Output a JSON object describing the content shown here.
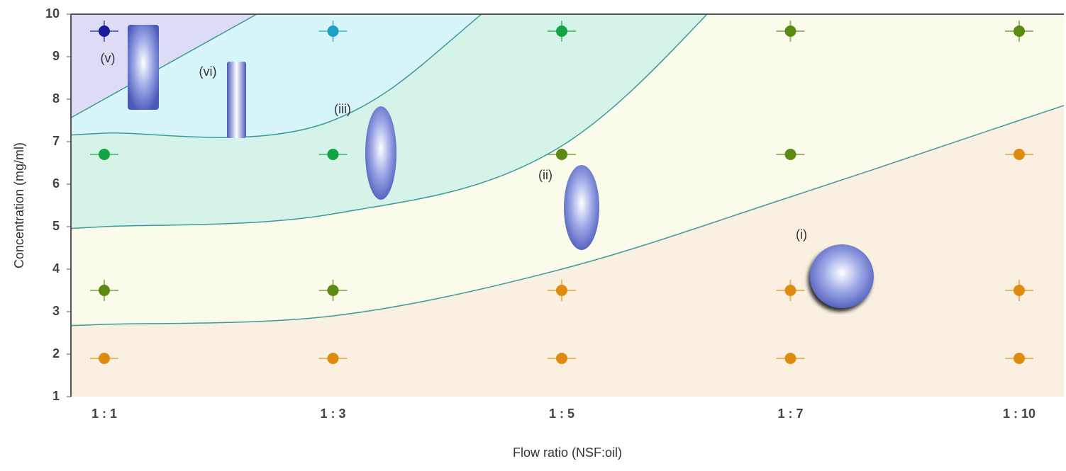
{
  "chart_data": {
    "type": "scatter",
    "x_label": "Flow ratio (NSF:oil)",
    "y_label": "Concentration (mg/ml)",
    "categories": [
      "1 : 1",
      "1 : 3",
      "1 : 5",
      "1 : 7",
      "1 : 10"
    ],
    "ylim": [
      1,
      10
    ],
    "yticks": [
      1,
      2,
      3,
      4,
      5,
      6,
      7,
      8,
      9,
      10
    ],
    "background": "#dcdcf6",
    "series": [
      {
        "values": [
          9.6,
          9.6,
          9.6,
          9.6,
          9.6
        ],
        "error": 0.25,
        "colors": [
          "#1a1a9e",
          "#1ea0c4",
          "#12a444",
          "#5a8a12",
          "#5a8a12"
        ]
      },
      {
        "values": [
          6.7,
          6.7,
          6.7,
          6.7,
          6.7
        ],
        "error": 0.1,
        "colors": [
          "#12a444",
          "#12a444",
          "#5a8a12",
          "#5a8a12",
          "#e08a10"
        ]
      },
      {
        "values": [
          3.5,
          3.5,
          3.5,
          3.5,
          3.5
        ],
        "error": 0.25,
        "colors": [
          "#5a8a12",
          "#5a8a12",
          "#e08a10",
          "#e08a10",
          "#e08a10"
        ]
      },
      {
        "values": [
          1.9,
          1.9,
          1.9,
          1.9,
          1.9
        ],
        "error": 0.1,
        "colors": [
          "#e08a10",
          "#e08a10",
          "#e08a10",
          "#e08a10",
          "#e08a10"
        ]
      }
    ],
    "boundaries": [
      {
        "values": [
          8.0,
          11.0,
          null,
          null,
          null
        ],
        "color": "#d8f5fa"
      },
      {
        "values": [
          7.2,
          7.5,
          11.5,
          null,
          null
        ],
        "color": "#d6f3ea"
      },
      {
        "values": [
          5.0,
          5.3,
          6.9,
          12.0,
          null
        ],
        "color": "#fbfbeb"
      },
      {
        "values": [
          2.7,
          2.9,
          4.0,
          5.7,
          7.5
        ],
        "color": "#faf0e2"
      }
    ],
    "boundary_color": "#3e9a9a",
    "annotations": [
      "(v)",
      "(vi)",
      "(iii)",
      "(ii)",
      "(i)"
    ]
  }
}
